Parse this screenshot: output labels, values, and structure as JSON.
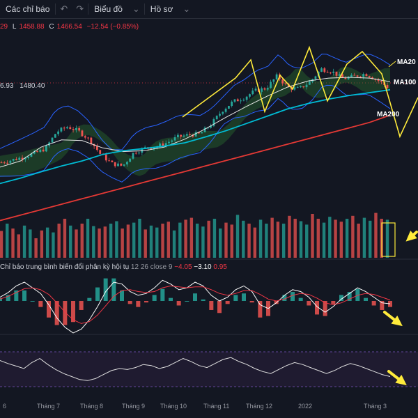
{
  "toolbar": {
    "indicators_label": "Các chỉ báo",
    "chart_label": "Biểu đồ",
    "profile_label": "Hồ sơ"
  },
  "ohlc": {
    "open_tail": "29",
    "low_label": "L",
    "low_value": "1458.88",
    "close_label": "C",
    "close_value": "1466.54",
    "change": "−12.54 (−0.85%)"
  },
  "price_ref": {
    "left": "6.93",
    "right": "1480.40"
  },
  "macd": {
    "title": "Chỉ báo trung bình biến đổi phân kỳ hội tụ",
    "params": "12 26 close 9",
    "histogram": "−4.05",
    "macd_line": "−3.10",
    "signal_line": "0.95"
  },
  "ma_labels": {
    "ma20": "MA20",
    "ma100": "MA100",
    "ma200": "MA200"
  },
  "colors": {
    "background": "#131722",
    "up": "#26a69a",
    "down": "#ef5350",
    "ma20": "#e8e8e8",
    "ma100": "#00bcd4",
    "ma200": "#e53935",
    "bollinger": "#2962ff",
    "ichimoku": "#2e7d32",
    "annotation": "#ffeb3b"
  },
  "chart_data": {
    "type": "line",
    "x_axis": {
      "tick_labels": [
        "6",
        "Tháng 7",
        "Tháng 8",
        "Tháng 9",
        "Tháng 10",
        "Tháng 11",
        "Tháng 12",
        "2022",
        "Tháng 3"
      ]
    },
    "price_path": {
      "x": [
        0,
        4,
        8,
        12,
        16,
        20,
        24,
        28,
        32,
        36,
        40,
        44,
        48,
        52,
        56,
        60,
        64,
        68,
        72,
        76,
        80,
        84,
        88,
        92,
        96,
        100,
        104,
        108,
        112,
        116,
        120,
        124,
        128,
        132,
        136,
        140
      ],
      "close": [
        1258,
        1265,
        1273,
        1283,
        1296,
        1342,
        1356,
        1344,
        1320,
        1280,
        1255,
        1248,
        1285,
        1297,
        1301,
        1312,
        1328,
        1334,
        1336,
        1362,
        1400,
        1425,
        1436,
        1455,
        1462,
        1496,
        1464,
        1460,
        1480,
        1515,
        1508,
        1488,
        1495,
        1502,
        1486,
        1466
      ]
    },
    "moving_averages": [
      {
        "name": "MA20",
        "values": [
          1245,
          1262,
          1300,
          1320,
          1318,
          1298,
          1288,
          1290,
          1300,
          1322,
          1350,
          1382,
          1412,
          1440,
          1465,
          1482,
          1490,
          1492,
          1490,
          1480
        ]
      },
      {
        "name": "MA100",
        "values": [
          1200,
          1215,
          1232,
          1248,
          1262,
          1280,
          1290,
          1296,
          1303,
          1312,
          1328,
          1345,
          1365,
          1385,
          1405,
          1420,
          1432,
          1442,
          1450,
          1458
        ]
      },
      {
        "name": "MA200",
        "values": [
          1098,
          1113,
          1128,
          1143,
          1158,
          1173,
          1188,
          1203,
          1218,
          1233,
          1248,
          1263,
          1278,
          1293,
          1308,
          1323,
          1338,
          1353,
          1368,
          1388
        ]
      }
    ],
    "volume": [
      0.55,
      0.7,
      0.6,
      0.48,
      0.66,
      0.58,
      0.4,
      0.56,
      0.62,
      0.52,
      0.7,
      0.8,
      0.66,
      0.58,
      0.7,
      0.8,
      0.65,
      0.6,
      0.64,
      0.7,
      0.75,
      0.6,
      0.68,
      0.72,
      0.8,
      0.58,
      0.66,
      0.62,
      0.7,
      0.74,
      0.56,
      0.72,
      0.78,
      0.82,
      0.7,
      0.64,
      0.76,
      0.8,
      0.6,
      0.72,
      0.68,
      0.88,
      0.76,
      0.7,
      0.62,
      0.78,
      0.7,
      0.82,
      0.74,
      0.7,
      0.86,
      0.8,
      0.75,
      0.68,
      0.9,
      0.8,
      0.72,
      0.84,
      0.78,
      0.74,
      0.8,
      0.86,
      0.7,
      0.82,
      0.76,
      0.92,
      0.8,
      0.78
    ],
    "macd": {
      "macd_line": [
        4,
        9,
        16,
        20,
        14,
        8,
        -4,
        -18,
        -28,
        -34,
        -30,
        -20,
        -6,
        10,
        20,
        18,
        10,
        6,
        8,
        14,
        22,
        18,
        12,
        14,
        20,
        16,
        6,
        0,
        4,
        12,
        16,
        10,
        -4,
        -8,
        -2,
        6,
        12,
        10,
        4,
        -6,
        -12,
        -6,
        2,
        8,
        14,
        10,
        4,
        -2,
        -3
      ],
      "signal_line": [
        2,
        5,
        9,
        13,
        14,
        12,
        7,
        -2,
        -12,
        -20,
        -24,
        -22,
        -15,
        -5,
        5,
        11,
        12,
        10,
        9,
        10,
        14,
        16,
        15,
        14,
        15,
        15,
        12,
        8,
        6,
        8,
        11,
        11,
        7,
        2,
        0,
        2,
        6,
        8,
        7,
        3,
        -2,
        -4,
        -2,
        2,
        6,
        8,
        7,
        4,
        1
      ]
    },
    "oscillator": [
      66,
      60,
      55,
      50,
      62,
      70,
      58,
      48,
      40,
      34,
      28,
      26,
      30,
      38,
      46,
      50,
      48,
      52,
      58,
      56,
      50,
      54,
      62,
      70,
      64,
      56,
      52,
      60,
      68,
      72,
      64,
      58,
      50,
      44,
      40,
      48,
      56,
      62,
      58,
      52,
      46,
      40,
      46,
      54,
      60,
      56,
      50,
      44,
      38,
      34
    ]
  }
}
